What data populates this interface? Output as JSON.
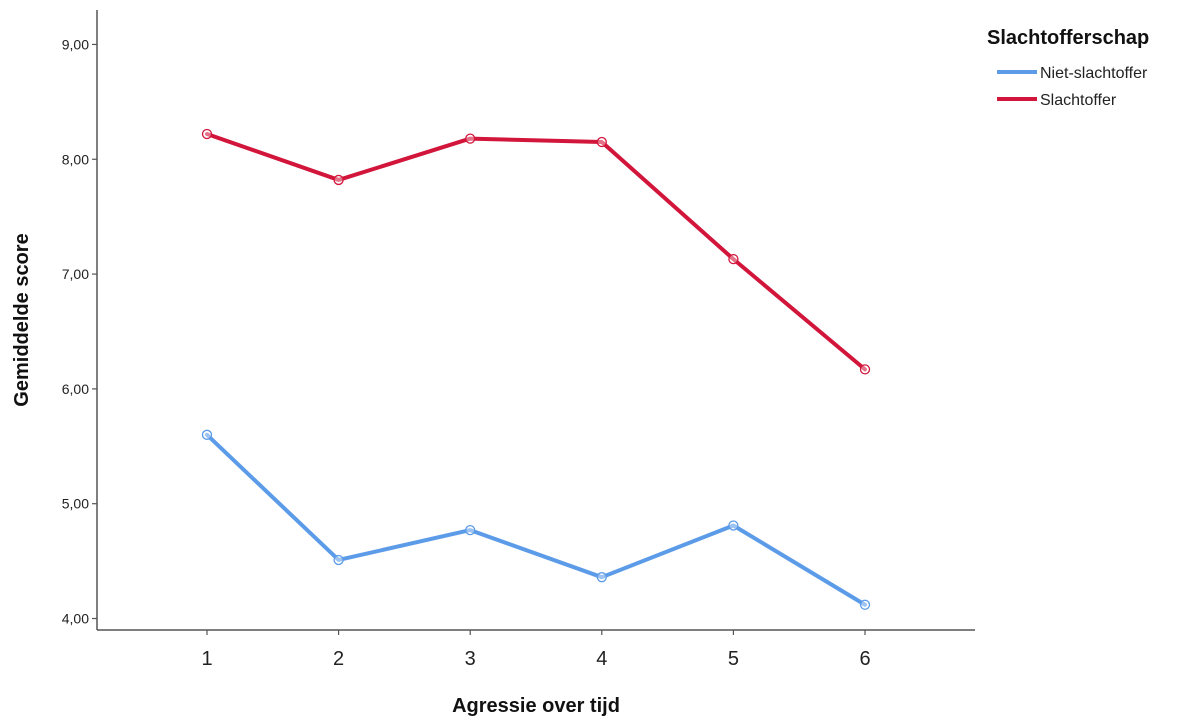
{
  "chart_data": {
    "type": "line",
    "title": "",
    "xlabel": "Agressie over tijd",
    "ylabel": "Gemiddelde score",
    "categories": [
      "1",
      "2",
      "3",
      "4",
      "5",
      "6"
    ],
    "ylim": [
      3.9,
      9.3
    ],
    "yticks": [
      4,
      5,
      6,
      7,
      8,
      9
    ],
    "ytick_labels": [
      "4,00",
      "5,00",
      "6,00",
      "7,00",
      "8,00",
      "9,00"
    ],
    "grid": false,
    "legend": {
      "title": "Slachtofferschap",
      "position": "top-right"
    },
    "series": [
      {
        "name": "Niet-slachtoffer",
        "color": "#5b9be8",
        "values": [
          5.6,
          4.51,
          4.77,
          4.36,
          4.81,
          4.12
        ]
      },
      {
        "name": "Slachtoffer",
        "color": "#d2153a",
        "values": [
          8.22,
          7.82,
          8.18,
          8.15,
          7.13,
          6.17
        ]
      }
    ]
  }
}
